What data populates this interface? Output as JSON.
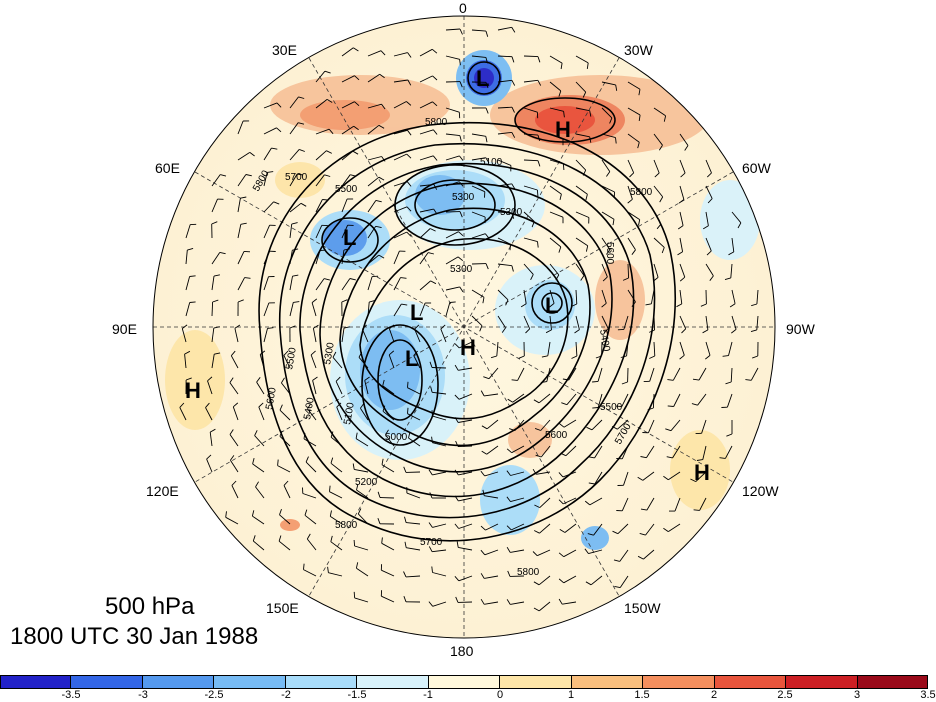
{
  "title": {
    "level": "500 hPa",
    "time": "1800 UTC 30 Jan 1988"
  },
  "longitude_labels": {
    "lon_0": "0",
    "lon_30w": "30W",
    "lon_60w": "60W",
    "lon_90w": "90W",
    "lon_120w": "120W",
    "lon_150w": "150W",
    "lon_180": "180",
    "lon_150e": "150E",
    "lon_120e": "120E",
    "lon_90e": "90E",
    "lon_60e": "60E",
    "lon_30e": "30E"
  },
  "pressure_centers": [
    {
      "symbol": "L",
      "where": "north Atlantic, near 0 deg"
    },
    {
      "symbol": "H",
      "where": "near 30W"
    },
    {
      "symbol": "L",
      "where": "western Russia"
    },
    {
      "symbol": "L",
      "where": "Hudson Bay"
    },
    {
      "symbol": "L",
      "where": "Siberia"
    },
    {
      "symbol": "L",
      "where": "eastern Siberia"
    },
    {
      "symbol": "H",
      "where": "Arctic"
    },
    {
      "symbol": "H",
      "where": "90E"
    },
    {
      "symbol": "H",
      "where": "120W"
    }
  ],
  "contour_labels": [
    "5800",
    "5700",
    "5600",
    "5500",
    "5400",
    "5300",
    "5200",
    "5100",
    "5000",
    "5900"
  ],
  "colorbar": {
    "colors": [
      "#2222c8",
      "#3366e6",
      "#5599ee",
      "#77bbf4",
      "#a8dcfa",
      "#d8f2fb",
      "#fff8dc",
      "#fde5a8",
      "#f9bf7e",
      "#f48f5e",
      "#e8553c",
      "#cc1f24",
      "#9a0a1a"
    ],
    "ticks": [
      "-3.5",
      "-3",
      "-2.5",
      "-2",
      "-1.5",
      "-1",
      "0",
      "1",
      "1.5",
      "2",
      "2.5",
      "3",
      "3.5"
    ]
  },
  "colors": {
    "cold": "#5599ee",
    "warm": "#f48f5e",
    "contour": "#000000"
  }
}
